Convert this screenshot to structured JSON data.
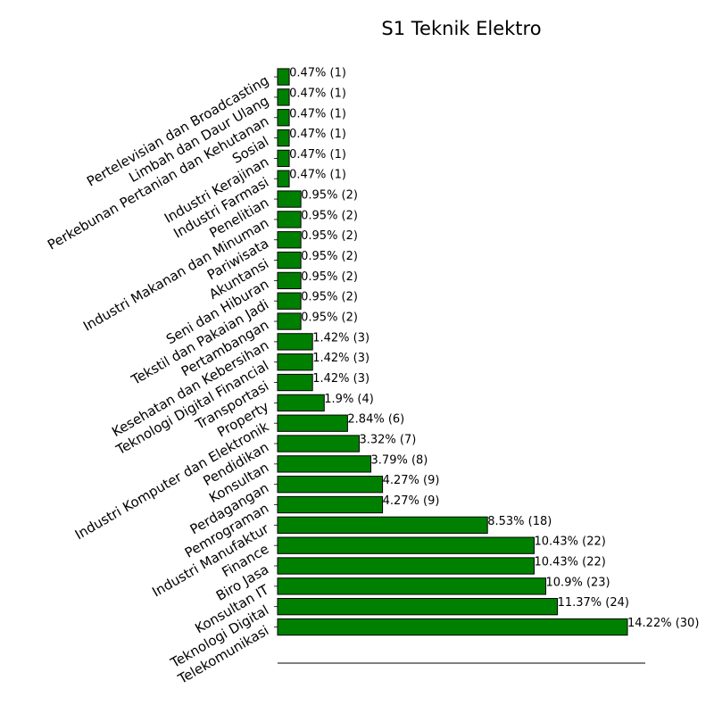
{
  "chart_data": {
    "type": "bar",
    "orientation": "horizontal",
    "title": "S1 Teknik Elektro",
    "xlabel": "",
    "ylabel": "",
    "bar_color": "#008000",
    "bar_edge_color": "#000000",
    "grid": false,
    "categories": [
      "Telekomunikasi",
      "Teknologi Digital",
      "Konsultan IT",
      "Biro Jasa",
      "Finance",
      "Industri Manufaktur",
      "Pemrograman",
      "Perdagangan",
      "Konsultan",
      "Pendidikan",
      "Industri Komputer dan Elektronik",
      "Property",
      "Transportasi",
      "Teknologi Digital Financial",
      "Kesehatan dan Kebersihan",
      "Pertambangan",
      "Tekstil dan Pakaian Jadi",
      "Seni dan Hiburan",
      "Akuntansi",
      "Pariwisata",
      "Industri Makanan dan Minuman",
      "Penelitian",
      "Industri Farmasi",
      "Industri Kerajinan",
      "Sosial",
      "Perkebunan Pertanian dan Kehutanan",
      "Limbah dan Daur Ulang",
      "Pertelevisian dan Broadcasting"
    ],
    "values": [
      30,
      24,
      23,
      22,
      22,
      18,
      9,
      9,
      8,
      7,
      6,
      4,
      3,
      3,
      3,
      2,
      2,
      2,
      2,
      2,
      2,
      2,
      1,
      1,
      1,
      1,
      1,
      1
    ],
    "data_labels": [
      "14.22% (30)",
      "11.37% (24)",
      "10.9% (23)",
      "10.43% (22)",
      "10.43% (22)",
      "8.53% (18)",
      "4.27% (9)",
      "4.27% (9)",
      "3.79% (8)",
      "3.32% (7)",
      "2.84% (6)",
      "1.9% (4)",
      "1.42% (3)",
      "1.42% (3)",
      "1.42% (3)",
      "0.95% (2)",
      "0.95% (2)",
      "0.95% (2)",
      "0.95% (2)",
      "0.95% (2)",
      "0.95% (2)",
      "0.95% (2)",
      "0.47% (1)",
      "0.47% (1)",
      "0.47% (1)",
      "0.47% (1)",
      "0.47% (1)",
      "0.47% (1)"
    ],
    "xlim": [
      0,
      31.5
    ]
  }
}
